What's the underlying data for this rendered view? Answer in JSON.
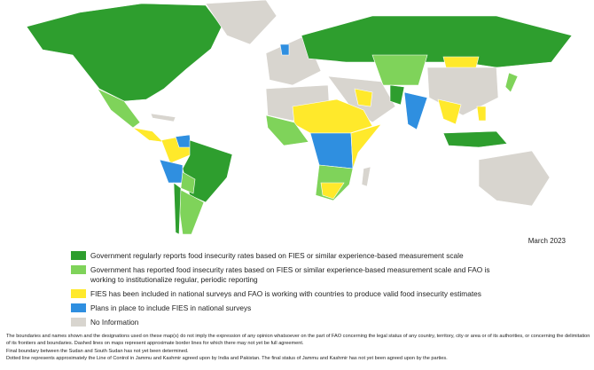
{
  "date": "March 2023",
  "legend": [
    {
      "label": "Government regularly reports food insecurity rates based on FIES or similar experience-based measurement scale",
      "color": "#2e9e2e"
    },
    {
      "label": "Government has reported food insecurity rates based on FIES or similar experience-based measurement scale and FAO is working to institutionalize regular, periodic reporting",
      "color": "#7fd35a"
    },
    {
      "label": "FIES has been included in national surveys and FAO is working with countries to produce valid food insecurity estimates",
      "color": "#ffe92b"
    },
    {
      "label": "Plans in place to include FIES in national surveys",
      "color": "#2f8fe0"
    },
    {
      "label": "No Information",
      "color": "#d8d5cf"
    }
  ],
  "notes": [
    "The boundaries and names shown and the designations used on these map(s) do not imply the expression of any opinion whatsoever on the part of FAO concerning the legal status of any country, territory, city or area or of its authorities, or concerning the delimitation of its frontiers and boundaries. Dashed lines on maps represent approximate border lines for which there may not yet be full agreement.",
    "Final boundary between the Sudan and South Sudan has not yet been determined.",
    "Dotted line represents approximately the Line of Control in Jammu and Kashmir agreed upon by India and Pakistan. The final status of Jammu and Kashmir has not yet been agreed upon by the parties."
  ]
}
